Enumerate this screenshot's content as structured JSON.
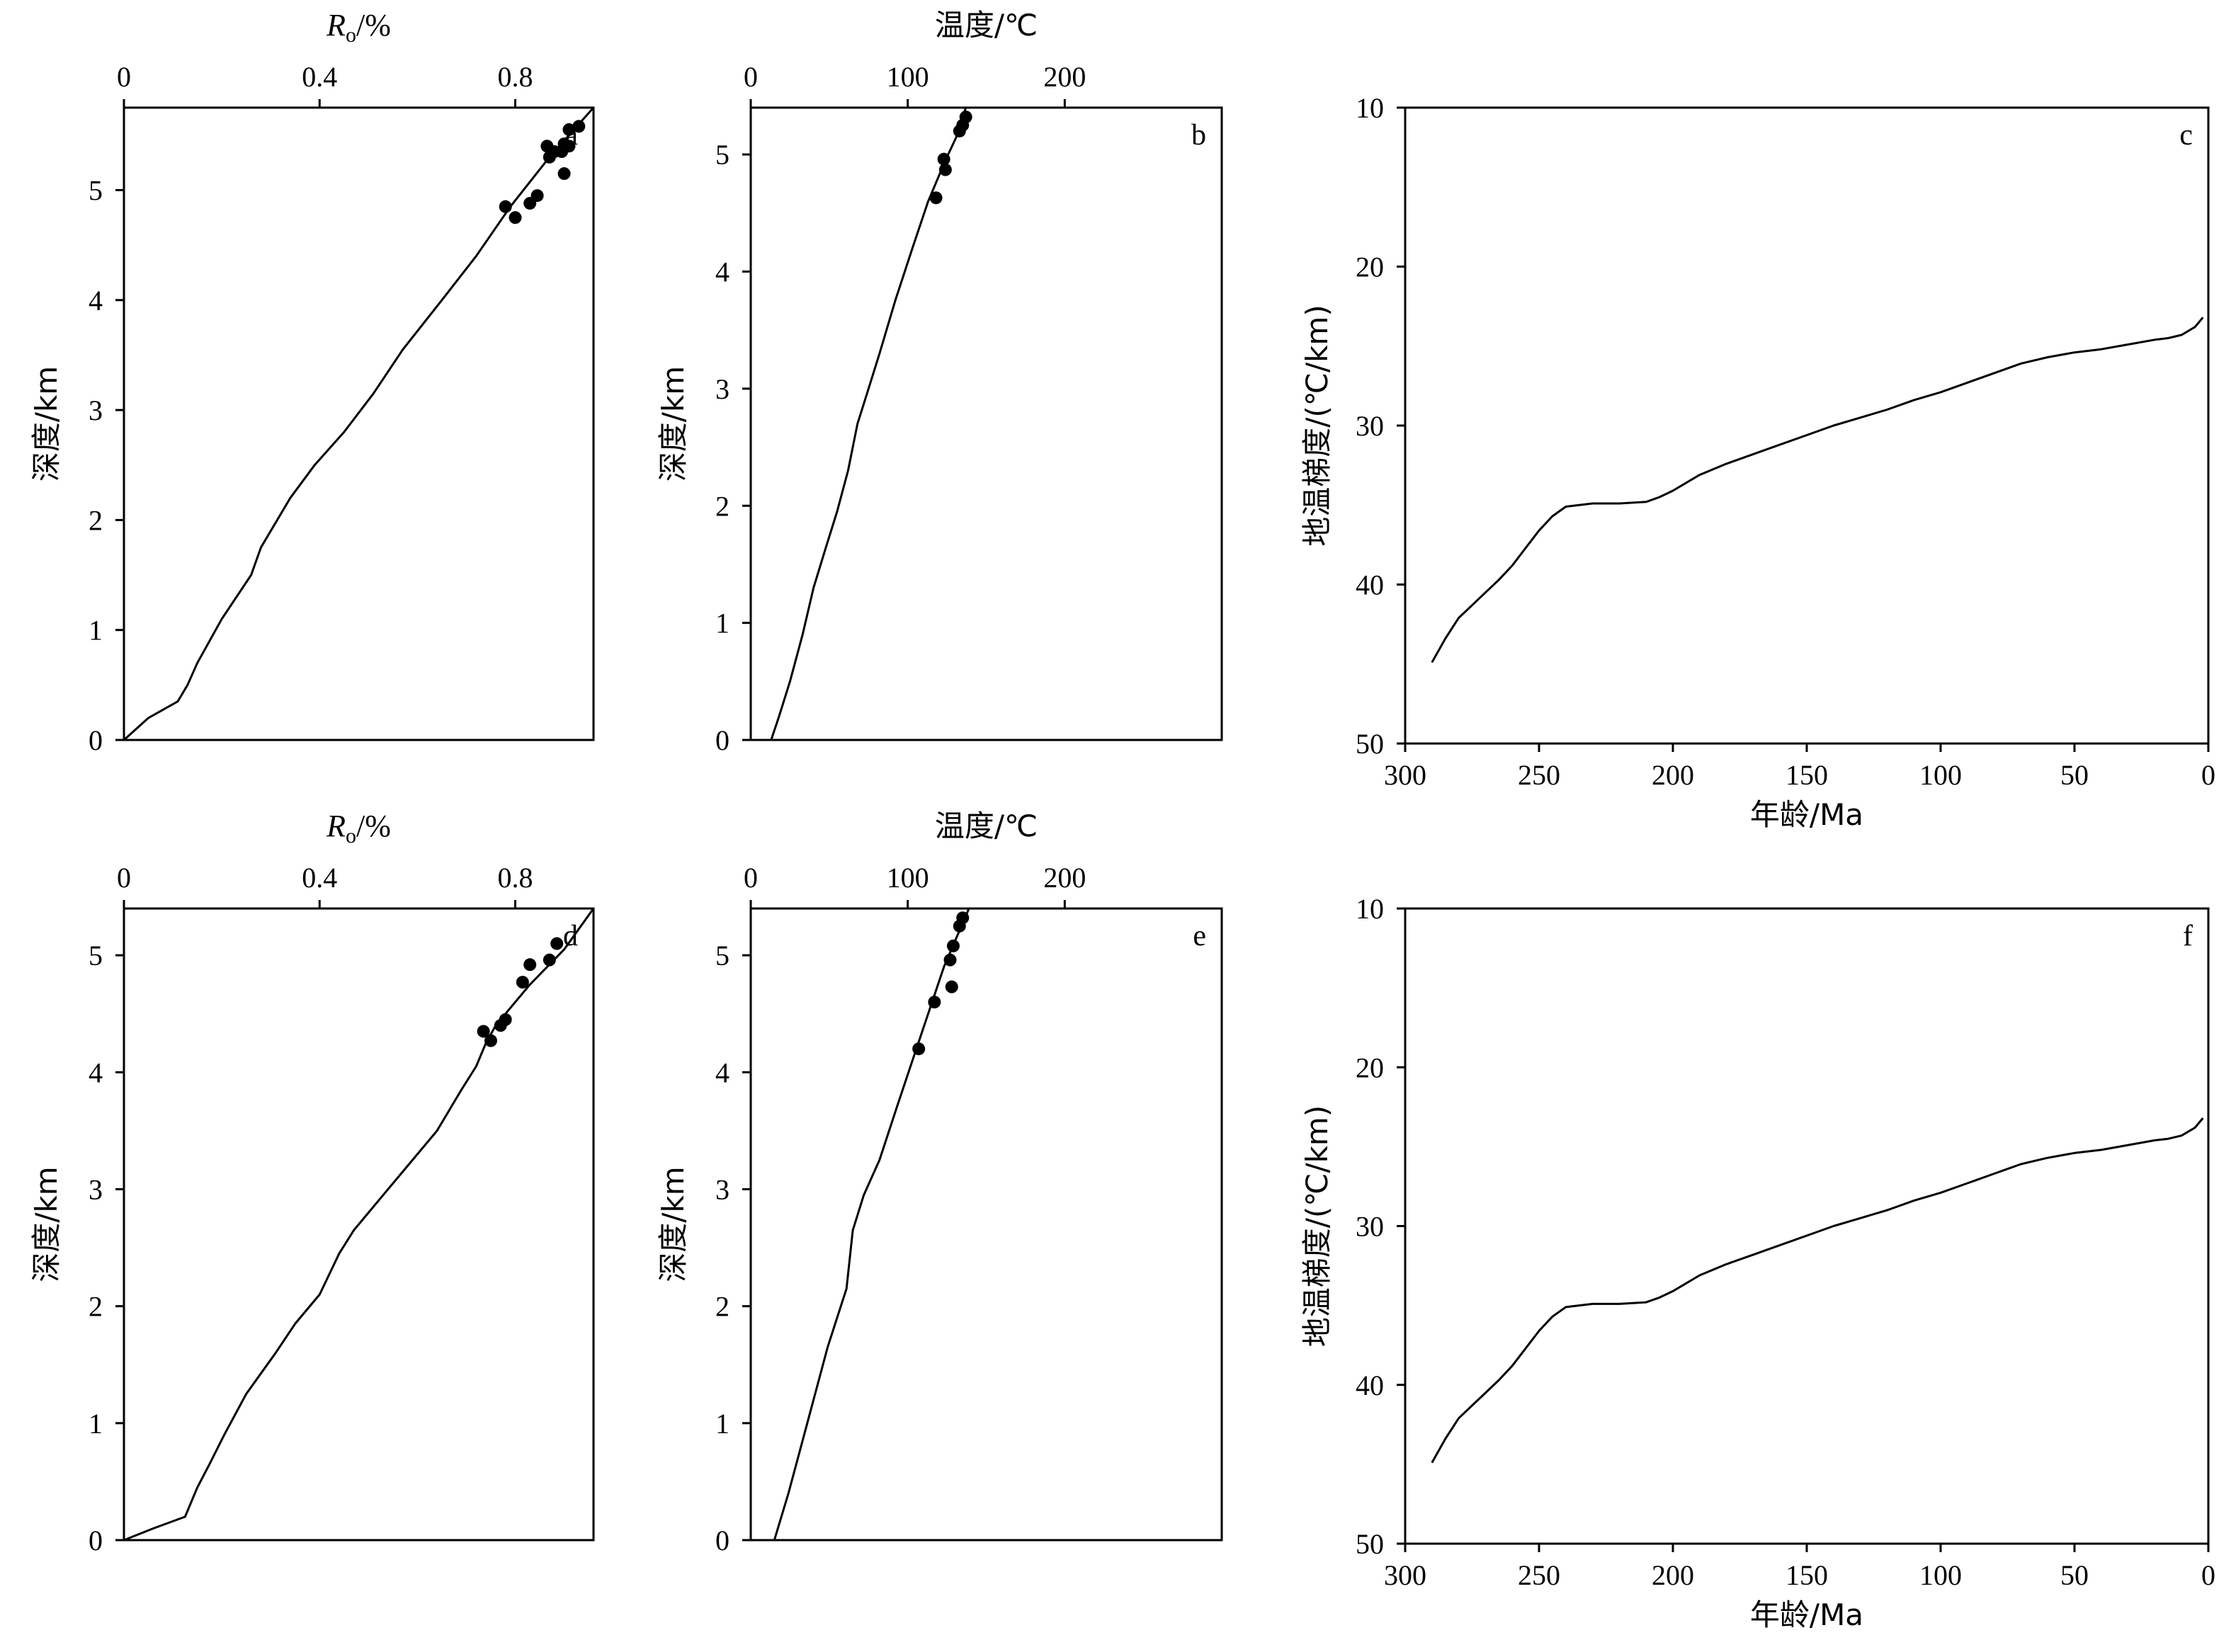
{
  "chart_data": [
    {
      "panel": "a",
      "type": "line",
      "xlabel": "Ro/%",
      "xlabel_main": "R",
      "xlabel_sub": "o",
      "xlabel_suffix": "/%",
      "ylabel": "深度/km",
      "xlim": [
        0,
        0.96
      ],
      "ylim": [
        5.75,
        0
      ],
      "xticks": [
        0,
        0.4,
        0.8
      ],
      "xtick_labels": [
        "0",
        "0.4",
        "0.8"
      ],
      "yticks": [
        0,
        1,
        2,
        3,
        4,
        5
      ],
      "ytick_labels": [
        "0",
        "1",
        "2",
        "3",
        "4",
        "5"
      ],
      "series": [
        {
          "role": "model",
          "x": [
            0,
            0.05,
            0.11,
            0.13,
            0.15,
            0.2,
            0.26,
            0.28,
            0.34,
            0.39,
            0.45,
            0.51,
            0.57,
            0.65,
            0.72,
            0.79,
            0.87,
            0.96
          ],
          "y": [
            0,
            0.2,
            0.35,
            0.5,
            0.7,
            1.1,
            1.5,
            1.75,
            2.2,
            2.5,
            2.8,
            3.15,
            3.55,
            4.0,
            4.4,
            4.85,
            5.3,
            5.75
          ]
        },
        {
          "role": "measured",
          "x": [
            0.8,
            0.78,
            0.83,
            0.845,
            0.9,
            0.87,
            0.88,
            0.895,
            0.865,
            0.91,
            0.9,
            0.905,
            0.91,
            0.93
          ],
          "y": [
            4.75,
            4.85,
            4.88,
            4.95,
            5.15,
            5.3,
            5.35,
            5.35,
            5.4,
            5.4,
            5.42,
            5.4,
            5.55,
            5.58
          ]
        }
      ]
    },
    {
      "panel": "b",
      "type": "line",
      "xlabel": "温度/℃",
      "ylabel": "深度/km",
      "xlim": [
        0,
        300
      ],
      "ylim": [
        5.4,
        0
      ],
      "xticks": [
        0,
        100,
        200
      ],
      "xtick_labels": [
        "0",
        "100",
        "200"
      ],
      "yticks": [
        0,
        1,
        2,
        3,
        4,
        5
      ],
      "ytick_labels": [
        "0",
        "1",
        "2",
        "3",
        "4",
        "5"
      ],
      "series": [
        {
          "role": "model",
          "x": [
            13,
            18,
            25,
            33,
            40,
            48,
            55,
            62,
            68,
            75,
            82,
            92,
            103,
            113,
            124,
            131,
            137
          ],
          "y": [
            0,
            0.2,
            0.5,
            0.9,
            1.3,
            1.65,
            1.95,
            2.3,
            2.7,
            3.0,
            3.3,
            3.75,
            4.2,
            4.6,
            4.95,
            5.15,
            5.4
          ]
        },
        {
          "role": "measured",
          "x": [
            118,
            124,
            123,
            133,
            135,
            137
          ],
          "y": [
            4.63,
            4.87,
            4.96,
            5.2,
            5.25,
            5.32
          ]
        }
      ]
    },
    {
      "panel": "c",
      "type": "line",
      "xlabel": "年龄/Ma",
      "ylabel": "地温梯度/(℃/km)",
      "xlim": [
        300,
        0
      ],
      "ylim": [
        10,
        50
      ],
      "xticks": [
        300,
        250,
        200,
        150,
        100,
        50,
        0
      ],
      "xtick_labels": [
        "300",
        "250",
        "200",
        "150",
        "100",
        "50",
        "0"
      ],
      "yticks": [
        10,
        20,
        30,
        40,
        50
      ],
      "ytick_labels": [
        "10",
        "20",
        "30",
        "40",
        "50"
      ],
      "series": [
        {
          "role": "model",
          "x": [
            290,
            285,
            280,
            275,
            270,
            265,
            260,
            255,
            250,
            245,
            240,
            230,
            220,
            210,
            205,
            200,
            190,
            180,
            170,
            160,
            150,
            140,
            130,
            120,
            110,
            100,
            90,
            80,
            70,
            60,
            50,
            40,
            30,
            20,
            15,
            10,
            5,
            2
          ],
          "y": [
            44.9,
            43.4,
            42.1,
            41.3,
            40.5,
            39.7,
            38.8,
            37.7,
            36.6,
            35.7,
            35.1,
            34.9,
            34.9,
            34.8,
            34.5,
            34.1,
            33.1,
            32.4,
            31.8,
            31.2,
            30.6,
            30.0,
            29.5,
            29.0,
            28.4,
            27.9,
            27.3,
            26.7,
            26.1,
            25.7,
            25.4,
            25.2,
            24.9,
            24.6,
            24.5,
            24.3,
            23.8,
            23.2
          ]
        }
      ]
    },
    {
      "panel": "d",
      "type": "line",
      "xlabel": "Ro/%",
      "xlabel_main": "R",
      "xlabel_sub": "o",
      "xlabel_suffix": "/%",
      "ylabel": "深度/km",
      "xlim": [
        0,
        0.96
      ],
      "ylim": [
        5.4,
        0
      ],
      "xticks": [
        0,
        0.4,
        0.8
      ],
      "xtick_labels": [
        "0",
        "0.4",
        "0.8"
      ],
      "yticks": [
        0,
        1,
        2,
        3,
        4,
        5
      ],
      "ytick_labels": [
        "0",
        "1",
        "2",
        "3",
        "4",
        "5"
      ],
      "series": [
        {
          "role": "model",
          "x": [
            0,
            0.06,
            0.125,
            0.15,
            0.175,
            0.205,
            0.25,
            0.31,
            0.35,
            0.4,
            0.44,
            0.47,
            0.53,
            0.6,
            0.64,
            0.69,
            0.72,
            0.74,
            0.76,
            0.83,
            0.9,
            0.96
          ],
          "y": [
            0,
            0.1,
            0.2,
            0.45,
            0.65,
            0.9,
            1.25,
            1.6,
            1.85,
            2.1,
            2.45,
            2.65,
            2.95,
            3.3,
            3.5,
            3.85,
            4.05,
            4.25,
            4.4,
            4.75,
            5.05,
            5.4
          ]
        },
        {
          "role": "measured",
          "x": [
            0.735,
            0.75,
            0.77,
            0.78,
            0.815,
            0.83,
            0.87,
            0.885
          ],
          "y": [
            4.35,
            4.27,
            4.4,
            4.45,
            4.77,
            4.92,
            4.96,
            5.1
          ]
        }
      ]
    },
    {
      "panel": "e",
      "type": "line",
      "xlabel": "温度/℃",
      "ylabel": "深度/km",
      "xlim": [
        0,
        300
      ],
      "ylim": [
        5.4,
        0
      ],
      "xticks": [
        0,
        100,
        200
      ],
      "xtick_labels": [
        "0",
        "100",
        "200"
      ],
      "yticks": [
        0,
        1,
        2,
        3,
        4,
        5
      ],
      "ytick_labels": [
        "0",
        "1",
        "2",
        "3",
        "4",
        "5"
      ],
      "series": [
        {
          "role": "model",
          "x": [
            15,
            24,
            34,
            43,
            49,
            55,
            61,
            65,
            72,
            82,
            93,
            103,
            113,
            123,
            131,
            139
          ],
          "y": [
            0,
            0.4,
            0.9,
            1.35,
            1.65,
            1.9,
            2.15,
            2.65,
            2.95,
            3.25,
            3.7,
            4.1,
            4.5,
            4.9,
            5.15,
            5.4
          ]
        },
        {
          "role": "measured",
          "x": [
            107,
            117,
            128,
            127,
            129,
            133,
            135
          ],
          "y": [
            4.2,
            4.6,
            4.73,
            4.96,
            5.08,
            5.25,
            5.32
          ]
        }
      ]
    },
    {
      "panel": "f",
      "type": "line",
      "xlabel": "年龄/Ma",
      "ylabel": "地温梯度/(℃/km)",
      "xlim": [
        300,
        0
      ],
      "ylim": [
        10,
        50
      ],
      "xticks": [
        300,
        250,
        200,
        150,
        100,
        50,
        0
      ],
      "xtick_labels": [
        "300",
        "250",
        "200",
        "150",
        "100",
        "50",
        "0"
      ],
      "yticks": [
        10,
        20,
        30,
        40,
        50
      ],
      "ytick_labels": [
        "10",
        "20",
        "30",
        "40",
        "50"
      ],
      "series": [
        {
          "role": "model",
          "x": [
            290,
            285,
            280,
            275,
            270,
            265,
            260,
            255,
            250,
            245,
            240,
            230,
            220,
            210,
            205,
            200,
            190,
            180,
            170,
            160,
            150,
            140,
            130,
            120,
            110,
            100,
            90,
            80,
            70,
            60,
            50,
            40,
            30,
            20,
            15,
            10,
            5,
            2
          ],
          "y": [
            44.9,
            43.4,
            42.1,
            41.3,
            40.5,
            39.7,
            38.8,
            37.7,
            36.6,
            35.7,
            35.1,
            34.9,
            34.9,
            34.8,
            34.5,
            34.1,
            33.1,
            32.4,
            31.8,
            31.2,
            30.6,
            30.0,
            29.5,
            29.0,
            28.4,
            27.9,
            27.3,
            26.7,
            26.1,
            25.7,
            25.4,
            25.2,
            24.9,
            24.6,
            24.5,
            24.3,
            23.8,
            23.2
          ]
        }
      ]
    }
  ]
}
